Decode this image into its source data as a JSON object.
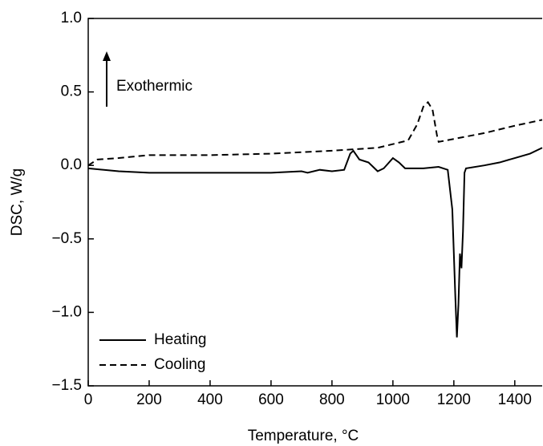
{
  "chart_data": {
    "type": "line",
    "x_label": "Temperature, °C",
    "y_label": "DSC, W/g",
    "annotation": "Exothermic",
    "xlim": [
      0,
      1490
    ],
    "ylim": [
      -1.5,
      1.0
    ],
    "xticks": [
      0,
      200,
      400,
      600,
      800,
      1000,
      1200,
      1400
    ],
    "yticks": [
      {
        "value": 1.0,
        "label": "1.0"
      },
      {
        "value": 0.5,
        "label": "0.5"
      },
      {
        "value": 0.0,
        "label": "0.0"
      },
      {
        "value": -0.5,
        "label": "−0.5"
      },
      {
        "value": -1.0,
        "label": "−1.0"
      },
      {
        "value": -1.5,
        "label": "−1.5"
      }
    ],
    "legend": "lower left",
    "series": [
      {
        "name": "Heating",
        "color": "#000000",
        "dash": false,
        "x": [
          0,
          100,
          200,
          400,
          600,
          700,
          720,
          760,
          800,
          840,
          860,
          870,
          890,
          920,
          950,
          970,
          1000,
          1020,
          1040,
          1100,
          1150,
          1180,
          1195,
          1205,
          1210,
          1215,
          1220,
          1225,
          1230,
          1235,
          1240,
          1300,
          1350,
          1400,
          1450,
          1490
        ],
        "values": [
          -0.02,
          -0.04,
          -0.05,
          -0.05,
          -0.05,
          -0.04,
          -0.05,
          -0.03,
          -0.04,
          -0.03,
          0.08,
          0.1,
          0.04,
          0.02,
          -0.04,
          -0.02,
          0.05,
          0.02,
          -0.02,
          -0.02,
          -0.01,
          -0.03,
          -0.3,
          -0.9,
          -1.17,
          -0.95,
          -0.6,
          -0.7,
          -0.45,
          -0.05,
          -0.02,
          0.0,
          0.02,
          0.05,
          0.08,
          0.12
        ]
      },
      {
        "name": "Cooling",
        "color": "#000000",
        "dash": true,
        "x": [
          0,
          30,
          100,
          200,
          400,
          600,
          800,
          950,
          1050,
          1080,
          1100,
          1115,
          1130,
          1145,
          1150,
          1200,
          1300,
          1400,
          1490
        ],
        "values": [
          0.0,
          0.04,
          0.05,
          0.07,
          0.07,
          0.08,
          0.1,
          0.12,
          0.17,
          0.28,
          0.4,
          0.43,
          0.38,
          0.2,
          0.16,
          0.18,
          0.22,
          0.27,
          0.31
        ]
      }
    ]
  }
}
